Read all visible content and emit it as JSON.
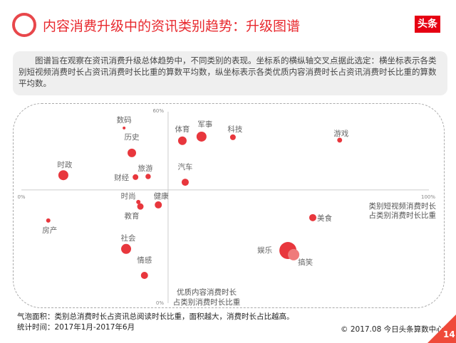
{
  "header": {
    "title": "内容消费升级中的资讯类别趋势：升级图谱",
    "logo_text": "头条"
  },
  "description": "图谱旨在观察在资讯消费升级总体趋势中，不同类别的表现。坐标系的横纵轴交叉点据此选定：横坐标表示各类别短视频消费时长占资讯消费时长比重的算数平均数，纵坐标表示各类优质内容消费时长占资讯消费时长比重的算数平均数。",
  "chart_data": {
    "type": "scatter",
    "xlabel_lines": [
      "类别短视频消费时长",
      "占类别消费时长比重"
    ],
    "ylabel_lines": [
      "优质内容消费时长",
      "占类别消费时长比重"
    ],
    "x_ticks": [
      "0%",
      "100%"
    ],
    "y_ticks": [
      "60%",
      "0%"
    ],
    "xlim": [
      0,
      100
    ],
    "ylim": [
      0,
      60
    ],
    "x_cross": 36,
    "y_cross": 35.5,
    "grid": false,
    "color": "#e8373d",
    "highlight_color": "#ef7b7b",
    "points": [
      {
        "name": "数码",
        "x": 25.2,
        "y": 54.9,
        "size": 4
      },
      {
        "name": "历史",
        "x": 27.1,
        "y": 47.1,
        "size": 36
      },
      {
        "name": "体育",
        "x": 39.5,
        "y": 50.9,
        "size": 36
      },
      {
        "name": "军事",
        "x": 44.2,
        "y": 52.2,
        "size": 49
      },
      {
        "name": "科技",
        "x": 51.9,
        "y": 52.0,
        "size": 16
      },
      {
        "name": "游戏",
        "x": 78.1,
        "y": 51.1,
        "size": 12
      },
      {
        "name": "时政",
        "x": 10.3,
        "y": 40.1,
        "size": 49
      },
      {
        "name": "财经",
        "x": 28.0,
        "y": 39.5,
        "size": 16
      },
      {
        "name": "旅游",
        "x": 31.1,
        "y": 39.7,
        "size": 14
      },
      {
        "name": "汽车",
        "x": 40.2,
        "y": 37.9,
        "size": 25
      },
      {
        "name": "时尚",
        "x": 28.7,
        "y": 31.7,
        "size": 9
      },
      {
        "name": "教育",
        "x": 29.2,
        "y": 30.3,
        "size": 20
      },
      {
        "name": "健康",
        "x": 33.6,
        "y": 30.8,
        "size": 25
      },
      {
        "name": "美食",
        "x": 71.5,
        "y": 26.8,
        "size": 25
      },
      {
        "name": "房产",
        "x": 6.6,
        "y": 25.9,
        "size": 9
      },
      {
        "name": "社会",
        "x": 25.7,
        "y": 17.0,
        "size": 49
      },
      {
        "name": "情感",
        "x": 30.2,
        "y": 8.7,
        "size": 25
      },
      {
        "name": "娱乐",
        "x": 65.4,
        "y": 16.5,
        "size": 144
      },
      {
        "name": "搞笑",
        "x": 66.8,
        "y": 15.2,
        "size": 64,
        "highlight": true
      }
    ]
  },
  "footer": {
    "note": "气泡面积：类别总消费时长占资讯总阅读时长比重，面积越大，消费时长占比越高。",
    "period": "统计时间：2017年1月-2017年6月",
    "copyright": "© 2017.08 今日头条算数中心",
    "page": "14"
  }
}
